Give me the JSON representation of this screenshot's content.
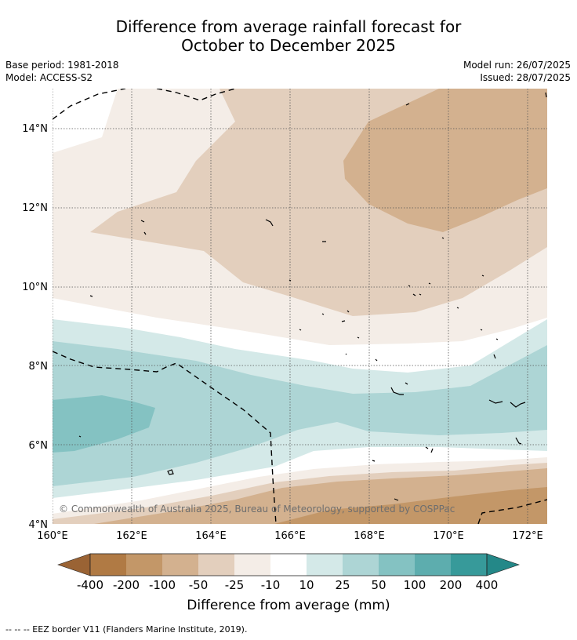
{
  "title": {
    "line1": "Difference from average rainfall forecast for",
    "line2": "October to December 2025"
  },
  "meta": {
    "base_period": "Base period: 1981-2018",
    "model": "Model: ACCESS-S2",
    "model_run": "Model run: 26/07/2025",
    "issued": "Issued: 28/07/2025"
  },
  "map": {
    "lon_ticks": [
      "160°E",
      "162°E",
      "164°E",
      "166°E",
      "168°E",
      "170°E",
      "172°E"
    ],
    "lat_ticks": [
      "4°N",
      "6°N",
      "8°N",
      "10°N",
      "12°N",
      "14°N"
    ],
    "copyright": "© Commonwealth of Australia 2025, Bureau of Meteorology, supported by COSPPac"
  },
  "colorbar": {
    "label": "Difference from average (mm)",
    "ticks": [
      "-400",
      "-200",
      "-100",
      "-50",
      "-25",
      "-10",
      "10",
      "25",
      "50",
      "100",
      "200",
      "400"
    ],
    "colors": {
      "c400n": "#9a6334",
      "c200n": "#b07a44",
      "c100n": "#c39768",
      "c50n": "#d3b18f",
      "c25n": "#e3cfbd",
      "c10n": "#f4ede7",
      "c0": "#ffffff",
      "c10": "#d4e9e8",
      "c25": "#add5d5",
      "c50": "#84c2c2",
      "c100": "#5dadae",
      "c200": "#379a9a",
      "c400": "#248888"
    }
  },
  "footnote": "--  --  -- EEZ border V11 (Flanders Marine Institute, 2019)."
}
